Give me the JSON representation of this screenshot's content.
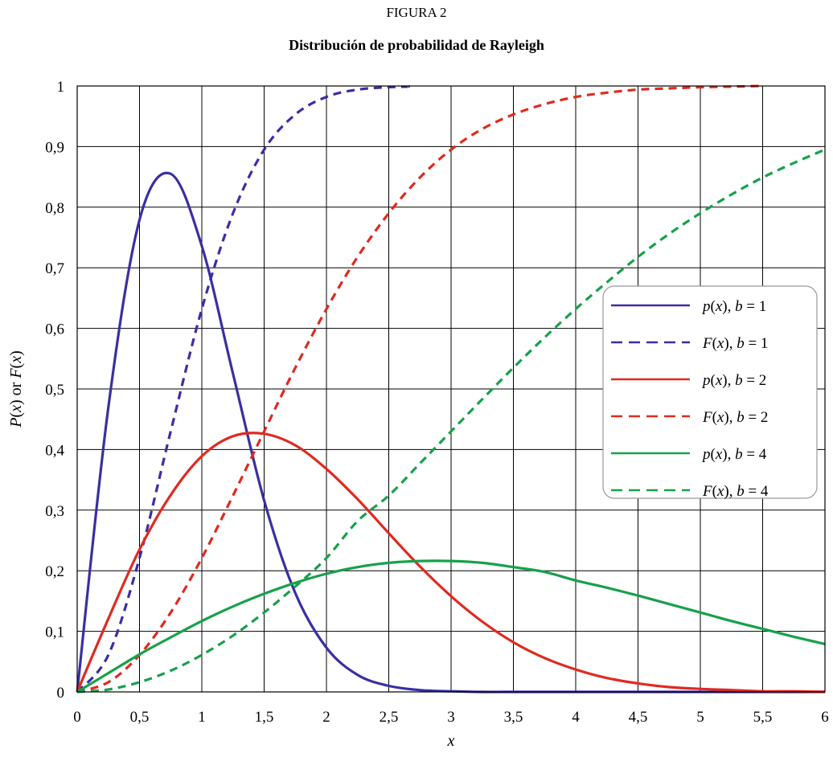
{
  "figure_label": "FIGURA 2",
  "chart_data": {
    "type": "line",
    "title": "Distribución de probabilidad de Rayleigh",
    "xlabel": "x",
    "ylabel": "P(x) or F(x)",
    "xlim": [
      0,
      6
    ],
    "ylim": [
      0,
      1
    ],
    "grid": true,
    "legend_position": "right",
    "x_ticks": [
      "0",
      "0,5",
      "1",
      "1,5",
      "2",
      "2,5",
      "3",
      "3,5",
      "4",
      "4,5",
      "5",
      "5,5",
      "6"
    ],
    "y_ticks": [
      "0",
      "0,1",
      "0,2",
      "0,3",
      "0,4",
      "0,5",
      "0,6",
      "0,7",
      "0,8",
      "0,9",
      "1"
    ],
    "x": [
      0,
      0.25,
      0.5,
      0.75,
      1,
      1.25,
      1.5,
      1.75,
      2,
      2.25,
      2.5,
      2.75,
      3,
      3.25,
      3.5,
      3.75,
      4,
      4.25,
      4.5,
      4.75,
      5,
      5.25,
      5.5,
      5.75,
      6
    ],
    "series": [
      {
        "name": "p(x), b = 1",
        "legend": {
          "fn": "p",
          "b": "1"
        },
        "style": "solid",
        "color": "#3a2fa3",
        "values": [
          0,
          0.47,
          0.779,
          0.855,
          0.736,
          0.525,
          0.316,
          0.163,
          0.073,
          0.028,
          0.01,
          0.003,
          0.001,
          0,
          0,
          0,
          0,
          0,
          0,
          0,
          0,
          0,
          0,
          0,
          0
        ]
      },
      {
        "name": "F(x), b = 1",
        "legend": {
          "fn": "F",
          "b": "1"
        },
        "style": "dashed",
        "color": "#3a2fa3",
        "values": [
          0,
          0.061,
          0.221,
          0.43,
          0.632,
          0.79,
          0.895,
          0.953,
          0.982,
          0.994,
          0.998,
          0.999,
          1.0
        ],
        "x": [
          0,
          0.25,
          0.5,
          0.75,
          1,
          1.25,
          1.5,
          1.75,
          2,
          2.25,
          2.5,
          2.65,
          2.65
        ]
      },
      {
        "name": "p(x), b = 2",
        "legend": {
          "fn": "p",
          "b": "2"
        },
        "style": "solid",
        "color": "#e02a20",
        "values": [
          0,
          0.121,
          0.235,
          0.325,
          0.389,
          0.422,
          0.426,
          0.407,
          0.368,
          0.318,
          0.262,
          0.207,
          0.158,
          0.116,
          0.082,
          0.056,
          0.037,
          0.023,
          0.014,
          0.008,
          0.005,
          0.003,
          0.001,
          0.001,
          0
        ]
      },
      {
        "name": "F(x), b = 2",
        "legend": {
          "fn": "F",
          "b": "2"
        },
        "style": "dashed",
        "color": "#e02a20",
        "values": [
          0,
          0.016,
          0.061,
          0.131,
          0.221,
          0.324,
          0.43,
          0.535,
          0.632,
          0.718,
          0.79,
          0.849,
          0.895,
          0.929,
          0.953,
          0.97,
          0.982,
          0.989,
          0.994,
          0.996,
          0.998,
          0.999,
          1.0
        ],
        "x": [
          0,
          0.25,
          0.5,
          0.75,
          1,
          1.25,
          1.5,
          1.75,
          2,
          2.25,
          2.5,
          2.75,
          3,
          3.25,
          3.5,
          3.75,
          4,
          4.25,
          4.5,
          4.75,
          5,
          5.25,
          5.5
        ]
      },
      {
        "name": "p(x), b = 4",
        "legend": {
          "fn": "p",
          "b": "4"
        },
        "style": "solid",
        "color": "#17a14a",
        "values": [
          0,
          0.031,
          0.062,
          0.09,
          0.117,
          0.141,
          0.162,
          0.18,
          0.195,
          0.206,
          0.213,
          0.216,
          0.216,
          0.213,
          0.206,
          0.198,
          0.184,
          0.172,
          0.159,
          0.145,
          0.131,
          0.117,
          0.104,
          0.091,
          0.079
        ]
      },
      {
        "name": "F(x), b = 4",
        "legend": {
          "fn": "F",
          "b": "4"
        },
        "style": "dashed",
        "color": "#17a14a",
        "values": [
          0,
          0.004,
          0.016,
          0.035,
          0.061,
          0.093,
          0.131,
          0.174,
          0.221,
          0.282,
          0.324,
          0.377,
          0.43,
          0.483,
          0.535,
          0.585,
          0.632,
          0.676,
          0.718,
          0.756,
          0.79,
          0.821,
          0.849,
          0.873,
          0.895
        ]
      }
    ]
  }
}
